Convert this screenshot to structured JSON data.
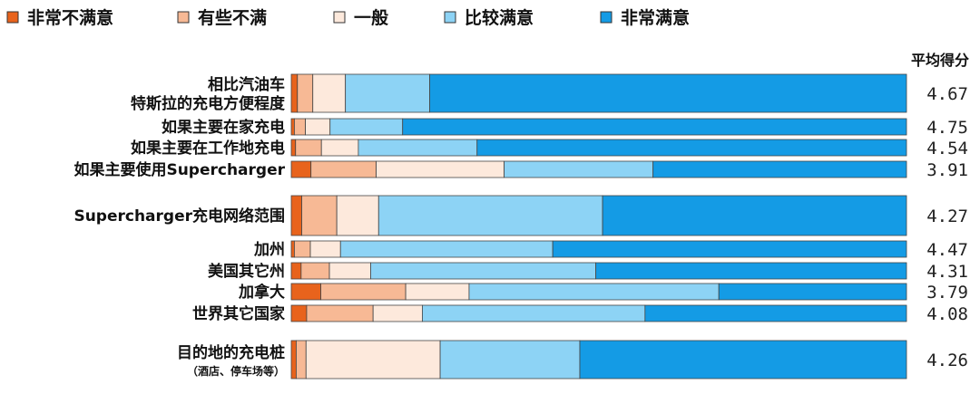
{
  "chart_data": {
    "type": "bar",
    "stacked": "horizontal-100%",
    "score_header": "平均得分",
    "legend": [
      {
        "name": "非常不满意",
        "color": "#E8631C"
      },
      {
        "name": "有些不满",
        "color": "#F7B995"
      },
      {
        "name": "一般",
        "color": "#FDE9DC"
      },
      {
        "name": "比较满意",
        "color": "#8DD3F5"
      },
      {
        "name": "非常满意",
        "color": "#149BE5"
      }
    ],
    "rows": [
      {
        "label": [
          "相比汽油车",
          "特斯拉的充电方便程度"
        ],
        "values": [
          1,
          2.5,
          5.3,
          13.7,
          77.5
        ],
        "score": "4.67"
      },
      {
        "label": [
          "如果主要在家充电"
        ],
        "values": [
          0.5,
          1.8,
          4,
          11.8,
          81.9
        ],
        "score": "4.75"
      },
      {
        "label": [
          "如果主要在工作地充电"
        ],
        "values": [
          0.7,
          4.2,
          6,
          19.3,
          69.8
        ],
        "score": "4.54"
      },
      {
        "label": [
          "如果主要使用Supercharger"
        ],
        "values": [
          3.2,
          10.6,
          20.8,
          24.2,
          41.2
        ],
        "score": "3.91"
      },
      {
        "label": [
          "Supercharger充电网络范围"
        ],
        "values": [
          1.7,
          5.7,
          6.8,
          36.4,
          49.4
        ],
        "score": "4.27"
      },
      {
        "label": [
          "加州"
        ],
        "values": [
          0.5,
          2.6,
          4.9,
          34.5,
          57.5
        ],
        "score": "4.47"
      },
      {
        "label": [
          "美国其它州"
        ],
        "values": [
          1.6,
          4.6,
          6.7,
          36.6,
          50.5
        ],
        "score": "4.31"
      },
      {
        "label": [
          "加拿大"
        ],
        "values": [
          4.8,
          13.8,
          10.3,
          40.6,
          30.5
        ],
        "score": "3.79"
      },
      {
        "label": [
          "世界其它国家"
        ],
        "values": [
          2.5,
          10.8,
          8,
          36.2,
          42.5
        ],
        "score": "4.08"
      },
      {
        "label": [
          "目的地的充电桩",
          "（酒店、停车场等）"
        ],
        "values": [
          0.8,
          1.6,
          21.8,
          22.7,
          53.1
        ],
        "score": "4.26"
      }
    ]
  }
}
